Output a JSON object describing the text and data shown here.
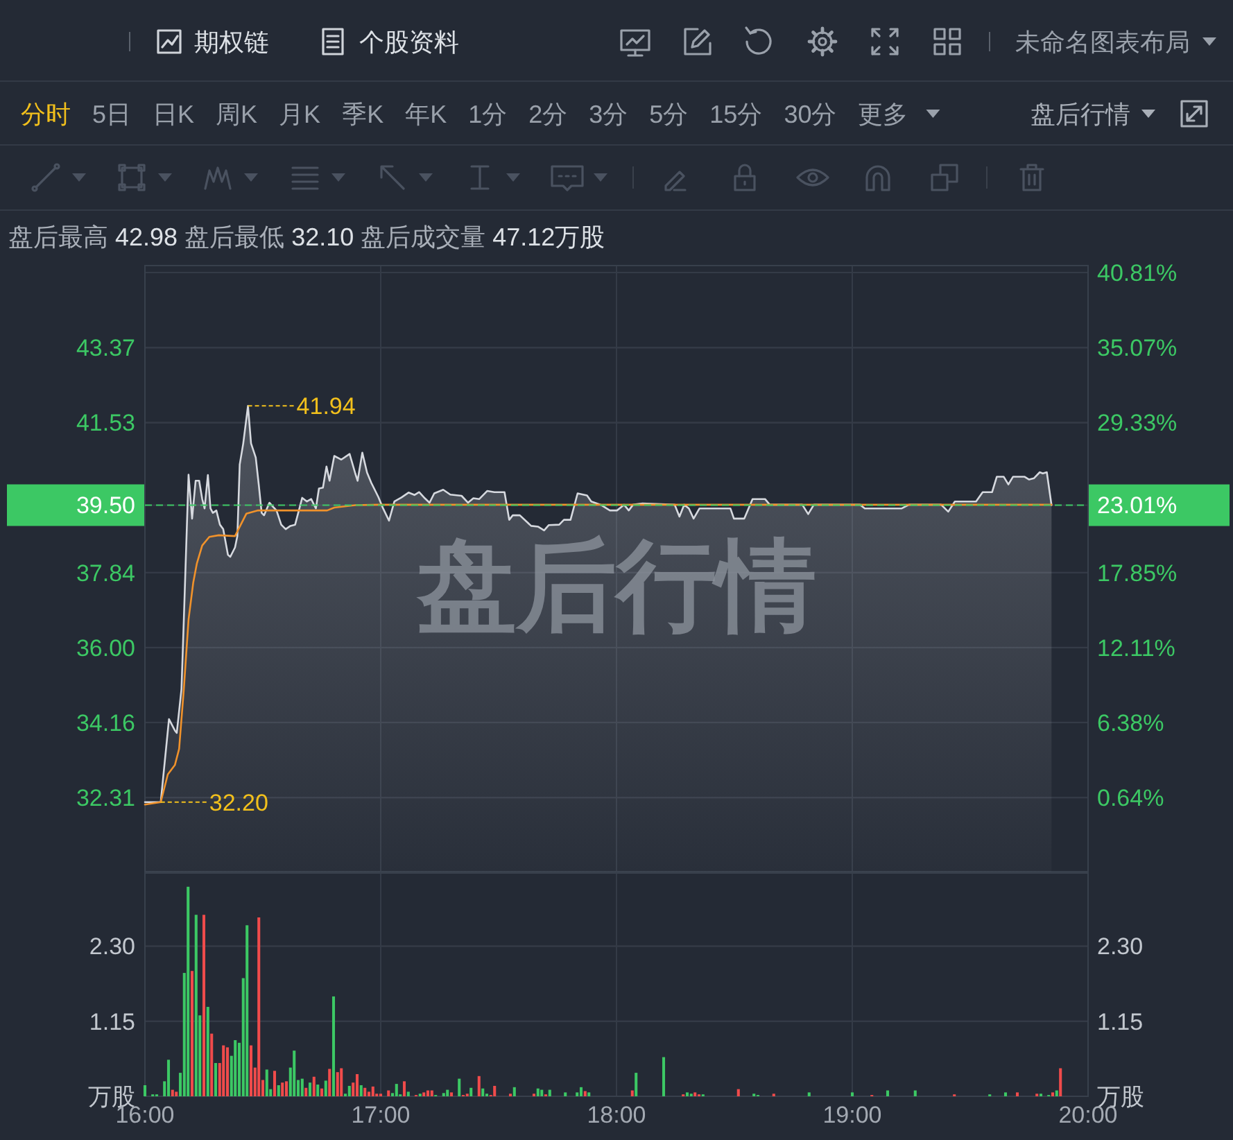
{
  "chart_data": [
    {
      "type": "other",
      "annotations": [
        "期权链",
        "个股资料",
        "未命名图表布局",
        "分时",
        "5日",
        "日K",
        "周K",
        "月K",
        "季K",
        "年K",
        "1分",
        "2分",
        "3分",
        "5分",
        "15分",
        "30分",
        "更多",
        "盘后行情"
      ]
    },
    {
      "type": "line",
      "title": "盘后行情",
      "subtitle": "盘后最高 42.98 盘后最低 32.10 盘后成交量 47.12万股",
      "xlim": [
        16,
        20
      ],
      "xticks": [
        {
          "value": 16,
          "label": null
        },
        {
          "value": 17,
          "label": null
        },
        {
          "value": 18,
          "label": null
        },
        {
          "value": 19,
          "label": null
        },
        {
          "value": 20,
          "label": null
        }
      ],
      "ylim": [
        30.49,
        45.39
      ],
      "yticks": [
        32.31,
        34.16,
        {
          "value": 36,
          "label": "36.00"
        },
        37.84,
        41.53,
        43.37
      ],
      "y2lim": [
        -5.02,
        41.34
      ],
      "y2ticks": [
        {
          "value": 0.64,
          "label": "0.64%"
        },
        {
          "value": 6.38,
          "label": "6.38%"
        },
        {
          "value": 12.11,
          "label": "12.11%"
        },
        {
          "value": 17.85,
          "label": "17.85%"
        },
        {
          "value": 23.01,
          "label": "23.01%"
        },
        {
          "value": 29.33,
          "label": "29.33%"
        },
        {
          "value": 35.07,
          "label": "35.07%"
        },
        {
          "value": 40.81,
          "label": "40.81%"
        }
      ],
      "tick_labels": "y",
      "grid": true,
      "series": [
        {
          "type": "area",
          "color": "#d6d9df",
          "x": [
            16.0,
            16.067,
            16.102,
            16.127,
            16.135,
            16.155,
            16.165,
            16.185,
            16.2,
            16.215,
            16.23,
            16.243,
            16.253,
            16.267,
            16.278,
            16.288,
            16.303,
            16.318,
            16.332,
            16.352,
            16.362,
            16.382,
            16.392,
            16.402,
            16.417,
            16.437,
            16.45,
            16.47,
            16.483,
            16.495,
            16.505,
            16.528,
            16.542,
            16.558,
            16.578,
            16.597,
            16.617,
            16.637,
            16.667,
            16.687,
            16.705,
            16.725,
            16.738,
            16.755,
            16.77,
            16.783,
            16.803,
            16.833,
            16.868,
            16.892,
            16.902,
            16.922,
            16.942,
            16.96,
            16.99,
            17.01,
            17.035,
            17.058,
            17.088,
            17.118,
            17.143,
            17.163,
            17.187,
            17.207,
            17.227,
            17.265,
            17.295,
            17.343,
            17.37,
            17.393,
            17.418,
            17.452,
            17.482,
            17.525,
            17.545,
            17.56,
            17.59,
            17.638,
            17.668,
            17.693,
            17.713,
            17.757,
            17.777,
            17.805,
            17.835,
            17.875,
            17.893,
            17.933,
            17.972,
            18.002,
            18.032,
            18.052,
            18.07,
            18.11,
            18.247,
            18.267,
            18.287,
            18.307,
            18.327,
            18.352,
            18.483,
            18.498,
            18.542,
            18.577,
            18.63,
            18.65,
            18.788,
            18.813,
            18.837,
            19.033,
            19.053,
            19.21,
            19.24,
            19.377,
            19.407,
            19.435,
            19.525,
            19.553,
            19.593,
            19.613,
            19.642,
            19.662,
            19.682,
            19.73,
            19.75,
            19.77,
            19.795,
            19.808,
            19.825,
            19.845
          ],
          "values": [
            32.2,
            32.2,
            34.24,
            33.96,
            33.9,
            34.98,
            36.69,
            40.25,
            39.17,
            40.1,
            40.1,
            39.65,
            39.42,
            40.24,
            39.42,
            39.31,
            39.37,
            39.02,
            38.91,
            38.28,
            38.23,
            38.46,
            38.74,
            40.5,
            41.02,
            41.94,
            41.02,
            40.67,
            39.99,
            39.31,
            39.25,
            39.56,
            39.47,
            39.37,
            39.02,
            38.91,
            38.99,
            39.02,
            39.68,
            39.59,
            39.65,
            39.42,
            39.91,
            39.93,
            40.45,
            40.1,
            40.71,
            40.62,
            40.76,
            40.28,
            40.1,
            40.79,
            40.3,
            40.05,
            39.7,
            39.42,
            39.12,
            39.59,
            39.69,
            39.81,
            39.75,
            39.82,
            39.67,
            39.56,
            39.79,
            39.88,
            39.76,
            39.73,
            39.56,
            39.67,
            39.65,
            39.85,
            39.82,
            39.82,
            39.14,
            39.25,
            39.25,
            38.99,
            38.97,
            38.88,
            39.01,
            39.02,
            39.14,
            39.14,
            39.79,
            39.74,
            39.59,
            39.51,
            39.37,
            39.37,
            39.51,
            39.37,
            39.51,
            39.54,
            39.51,
            39.22,
            39.51,
            39.42,
            39.17,
            39.42,
            39.42,
            39.17,
            39.17,
            39.65,
            39.65,
            39.51,
            39.51,
            39.28,
            39.51,
            39.51,
            39.42,
            39.42,
            39.51,
            39.51,
            39.34,
            39.59,
            39.59,
            39.82,
            39.82,
            40.2,
            40.2,
            40.01,
            40.2,
            40.2,
            40.13,
            40.16,
            40.31,
            40.28,
            40.31,
            39.5
          ]
        },
        {
          "type": "line",
          "color": "#f0922b",
          "x": [
            16.0,
            16.067,
            16.097,
            16.127,
            16.145,
            16.165,
            16.185,
            16.205,
            16.22,
            16.243,
            16.273,
            16.313,
            16.382,
            16.402,
            16.43,
            16.48,
            16.558,
            16.657,
            16.773,
            16.803,
            16.892,
            16.99,
            19.845
          ],
          "values": [
            32.14,
            32.2,
            32.88,
            33.11,
            33.51,
            34.98,
            36.69,
            37.6,
            38.06,
            38.51,
            38.72,
            38.76,
            38.74,
            38.97,
            39.29,
            39.37,
            39.37,
            39.37,
            39.37,
            39.44,
            39.5,
            39.51,
            39.51
          ]
        }
      ],
      "ref_lines": [
        {
          "axis": "y",
          "value": 39.5,
          "label": "39.50",
          "color": "#3cc864",
          "line_style": "dashed"
        }
      ],
      "annotations": [
        {
          "text": "41.94",
          "x": 16.437,
          "y": 41.94
        },
        {
          "text": "32.20",
          "x": 16.067,
          "y": 32.2
        }
      ]
    },
    {
      "type": "bar",
      "xlim": [
        16,
        20
      ],
      "xticks": [
        {
          "value": 16,
          "label": "16:00"
        },
        {
          "value": 17,
          "label": "17:00"
        },
        {
          "value": 18,
          "label": "18:00"
        },
        {
          "value": 19,
          "label": "19:00"
        },
        {
          "value": 20,
          "label": "20:00"
        }
      ],
      "ylim": [
        0,
        3.42
      ],
      "yticks": [
        {
          "value": 0,
          "label": "万股"
        },
        1.15,
        {
          "value": 2.3,
          "label": "2.30"
        }
      ],
      "y2lim": [
        0,
        3.42
      ],
      "y2ticks": [
        {
          "value": 0,
          "label": "万股"
        },
        1.15,
        {
          "value": 2.3,
          "label": "2.30"
        }
      ],
      "grid": true,
      "x": [
        16.0,
        16.033,
        16.05,
        16.083,
        16.1,
        16.117,
        16.133,
        16.15,
        16.167,
        16.183,
        16.2,
        16.217,
        16.233,
        16.25,
        16.267,
        16.283,
        16.3,
        16.317,
        16.333,
        16.35,
        16.367,
        16.383,
        16.4,
        16.417,
        16.433,
        16.45,
        16.467,
        16.483,
        16.5,
        16.517,
        16.533,
        16.55,
        16.567,
        16.583,
        16.6,
        16.617,
        16.633,
        16.65,
        16.667,
        16.683,
        16.7,
        16.717,
        16.733,
        16.75,
        16.767,
        16.783,
        16.8,
        16.817,
        16.833,
        16.85,
        16.867,
        16.883,
        16.9,
        16.917,
        16.933,
        16.95,
        16.967,
        16.983,
        17.0,
        17.033,
        17.05,
        17.067,
        17.083,
        17.1,
        17.117,
        17.15,
        17.167,
        17.183,
        17.2,
        17.217,
        17.233,
        17.267,
        17.283,
        17.3,
        17.333,
        17.35,
        17.367,
        17.383,
        17.417,
        17.433,
        17.45,
        17.467,
        17.483,
        17.55,
        17.567,
        17.65,
        17.667,
        17.683,
        17.7,
        17.717,
        17.783,
        17.833,
        17.85,
        17.867,
        17.883,
        18.067,
        18.083,
        18.2,
        18.283,
        18.3,
        18.317,
        18.333,
        18.35,
        18.367,
        18.517,
        18.583,
        18.6,
        18.667,
        18.817,
        19.0,
        19.083,
        19.15,
        19.267,
        19.433,
        19.583,
        19.65,
        19.7,
        19.783,
        19.8,
        19.833,
        19.85,
        19.867,
        19.883
      ],
      "values": [
        0.17,
        0.03,
        0.03,
        0.23,
        0.56,
        0.1,
        0.07,
        0.36,
        1.89,
        3.21,
        1.92,
        2.78,
        1.24,
        2.78,
        1.37,
        0.96,
        0.51,
        0.51,
        0.78,
        0.75,
        0.62,
        0.86,
        0.82,
        1.81,
        2.62,
        0.78,
        0.44,
        2.74,
        0.25,
        0.41,
        0.11,
        0.39,
        0.17,
        0.21,
        0.23,
        0.44,
        0.7,
        0.25,
        0.27,
        0.13,
        0.21,
        0.3,
        0.18,
        0.12,
        0.24,
        0.42,
        1.53,
        0.37,
        0.43,
        0.04,
        0.16,
        0.21,
        0.34,
        0.17,
        0.13,
        0.07,
        0.15,
        0.04,
        0.04,
        0.09,
        0.05,
        0.19,
        0.03,
        0.23,
        0.07,
        0.02,
        0.04,
        0.06,
        0.09,
        0.09,
        0.02,
        0.05,
        0.1,
        0.06,
        0.27,
        0.02,
        0.04,
        0.13,
        0.31,
        0.12,
        0.04,
        0.02,
        0.16,
        0.04,
        0.14,
        0.04,
        0.12,
        0.1,
        0.03,
        0.1,
        0.06,
        0.06,
        0.14,
        0.08,
        0.06,
        0.09,
        0.36,
        0.6,
        0.03,
        0.06,
        0.04,
        0.06,
        0.03,
        0.03,
        0.11,
        0.04,
        0.02,
        0.04,
        0.06,
        0.06,
        0.02,
        0.09,
        0.09,
        0.03,
        0.03,
        0.06,
        0.06,
        0.04,
        0.04,
        0.02,
        0.06,
        0.09,
        0.43
      ],
      "colors": [
        "#3cc864",
        "#3cc864",
        "#3cc864",
        "#3cc864",
        "#3cc864",
        "#f04b4b",
        "#f04b4b",
        "#3cc864",
        "#3cc864",
        "#3cc864",
        "#f04b4b",
        "#3cc864",
        "#3cc864",
        "#f04b4b",
        "#3cc864",
        "#f04b4b",
        "#3cc864",
        "#f04b4b",
        "#f04b4b",
        "#f04b4b",
        "#3cc864",
        "#3cc864",
        "#3cc864",
        "#3cc864",
        "#3cc864",
        "#f04b4b",
        "#f04b4b",
        "#f04b4b",
        "#f04b4b",
        "#3cc864",
        "#3cc864",
        "#f04b4b",
        "#3cc864",
        "#f04b4b",
        "#f04b4b",
        "#3cc864",
        "#3cc864",
        "#3cc864",
        "#3cc864",
        "#f04b4b",
        "#3cc864",
        "#f04b4b",
        "#3cc864",
        "#f04b4b",
        "#3cc864",
        "#f04b4b",
        "#3cc864",
        "#f04b4b",
        "#f04b4b",
        "#3cc864",
        "#3cc864",
        "#f04b4b",
        "#f04b4b",
        "#3cc864",
        "#f04b4b",
        "#f04b4b",
        "#f04b4b",
        "#f04b4b",
        "#f04b4b",
        "#f04b4b",
        "#3cc864",
        "#3cc864",
        "#3cc864",
        "#f04b4b",
        "#3cc864",
        "#f04b4b",
        "#3cc864",
        "#f04b4b",
        "#f04b4b",
        "#f04b4b",
        "#3cc864",
        "#3cc864",
        "#3cc864",
        "#f04b4b",
        "#3cc864",
        "#f04b4b",
        "#f04b4b",
        "#3cc864",
        "#f04b4b",
        "#3cc864",
        "#3cc864",
        "#f04b4b",
        "#f04b4b",
        "#f04b4b",
        "#3cc864",
        "#f04b4b",
        "#3cc864",
        "#3cc864",
        "#f04b4b",
        "#3cc864",
        "#3cc864",
        "#3cc864",
        "#3cc864",
        "#f04b4b",
        "#3cc864",
        "#f04b4b",
        "#3cc864",
        "#3cc864",
        "#f04b4b",
        "#3cc864",
        "#3cc864",
        "#f04b4b",
        "#f04b4b",
        "#3cc864",
        "#f04b4b",
        "#3cc864",
        "#3cc864",
        "#f04b4b",
        "#3cc864",
        "#3cc864",
        "#f04b4b",
        "#3cc864",
        "#3cc864",
        "#f04b4b",
        "#3cc864",
        "#3cc864",
        "#f04b4b",
        "#f04b4b",
        "#3cc864",
        "#3cc864",
        "#f04b4b",
        "#3cc864",
        "#f04b4b"
      ]
    }
  ]
}
